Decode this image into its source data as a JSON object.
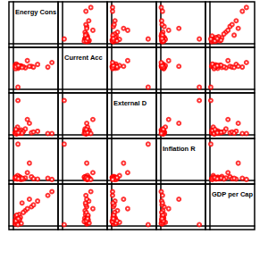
{
  "chart_data": {
    "type": "scatter_matrix",
    "variables": [
      {
        "name": "Energy Cons",
        "values": [
          5,
          8,
          10,
          12,
          6,
          15,
          20,
          9,
          7,
          30,
          45,
          60,
          85,
          11,
          14,
          18,
          25,
          8,
          6,
          10,
          35,
          50,
          12,
          9,
          16,
          22,
          7,
          13,
          40,
          95
        ]
      },
      {
        "name": "Current Acc",
        "values": [
          60,
          58,
          62,
          55,
          64,
          57,
          61,
          59,
          63,
          56,
          60,
          65,
          58,
          62,
          57,
          61,
          59,
          66,
          54,
          60,
          75,
          58,
          5,
          63,
          61,
          57,
          59,
          62,
          60,
          70
        ]
      },
      {
        "name": "External D",
        "values": [
          5,
          3,
          8,
          10,
          4,
          6,
          12,
          2,
          7,
          15,
          5,
          9,
          3,
          20,
          6,
          4,
          8,
          11,
          3,
          5,
          40,
          7,
          90,
          6,
          9,
          4,
          14,
          5,
          30,
          3
        ]
      },
      {
        "name": "Inflation R",
        "values": [
          4,
          6,
          3,
          8,
          5,
          10,
          2,
          7,
          4,
          6,
          9,
          3,
          5,
          12,
          4,
          7,
          3,
          6,
          8,
          5,
          20,
          4,
          95,
          6,
          3,
          5,
          7,
          4,
          45,
          2
        ]
      },
      {
        "name": "GDP per Cap",
        "values": [
          5,
          10,
          8,
          20,
          15,
          30,
          6,
          12,
          25,
          40,
          50,
          65,
          80,
          9,
          14,
          22,
          35,
          7,
          11,
          18,
          45,
          55,
          3,
          28,
          16,
          60,
          13,
          19,
          70,
          90
        ]
      }
    ],
    "lim": [
      -10,
      110
    ],
    "color": "#ff0000",
    "marker": "circle_open",
    "tick_labels": false,
    "grid": false
  }
}
